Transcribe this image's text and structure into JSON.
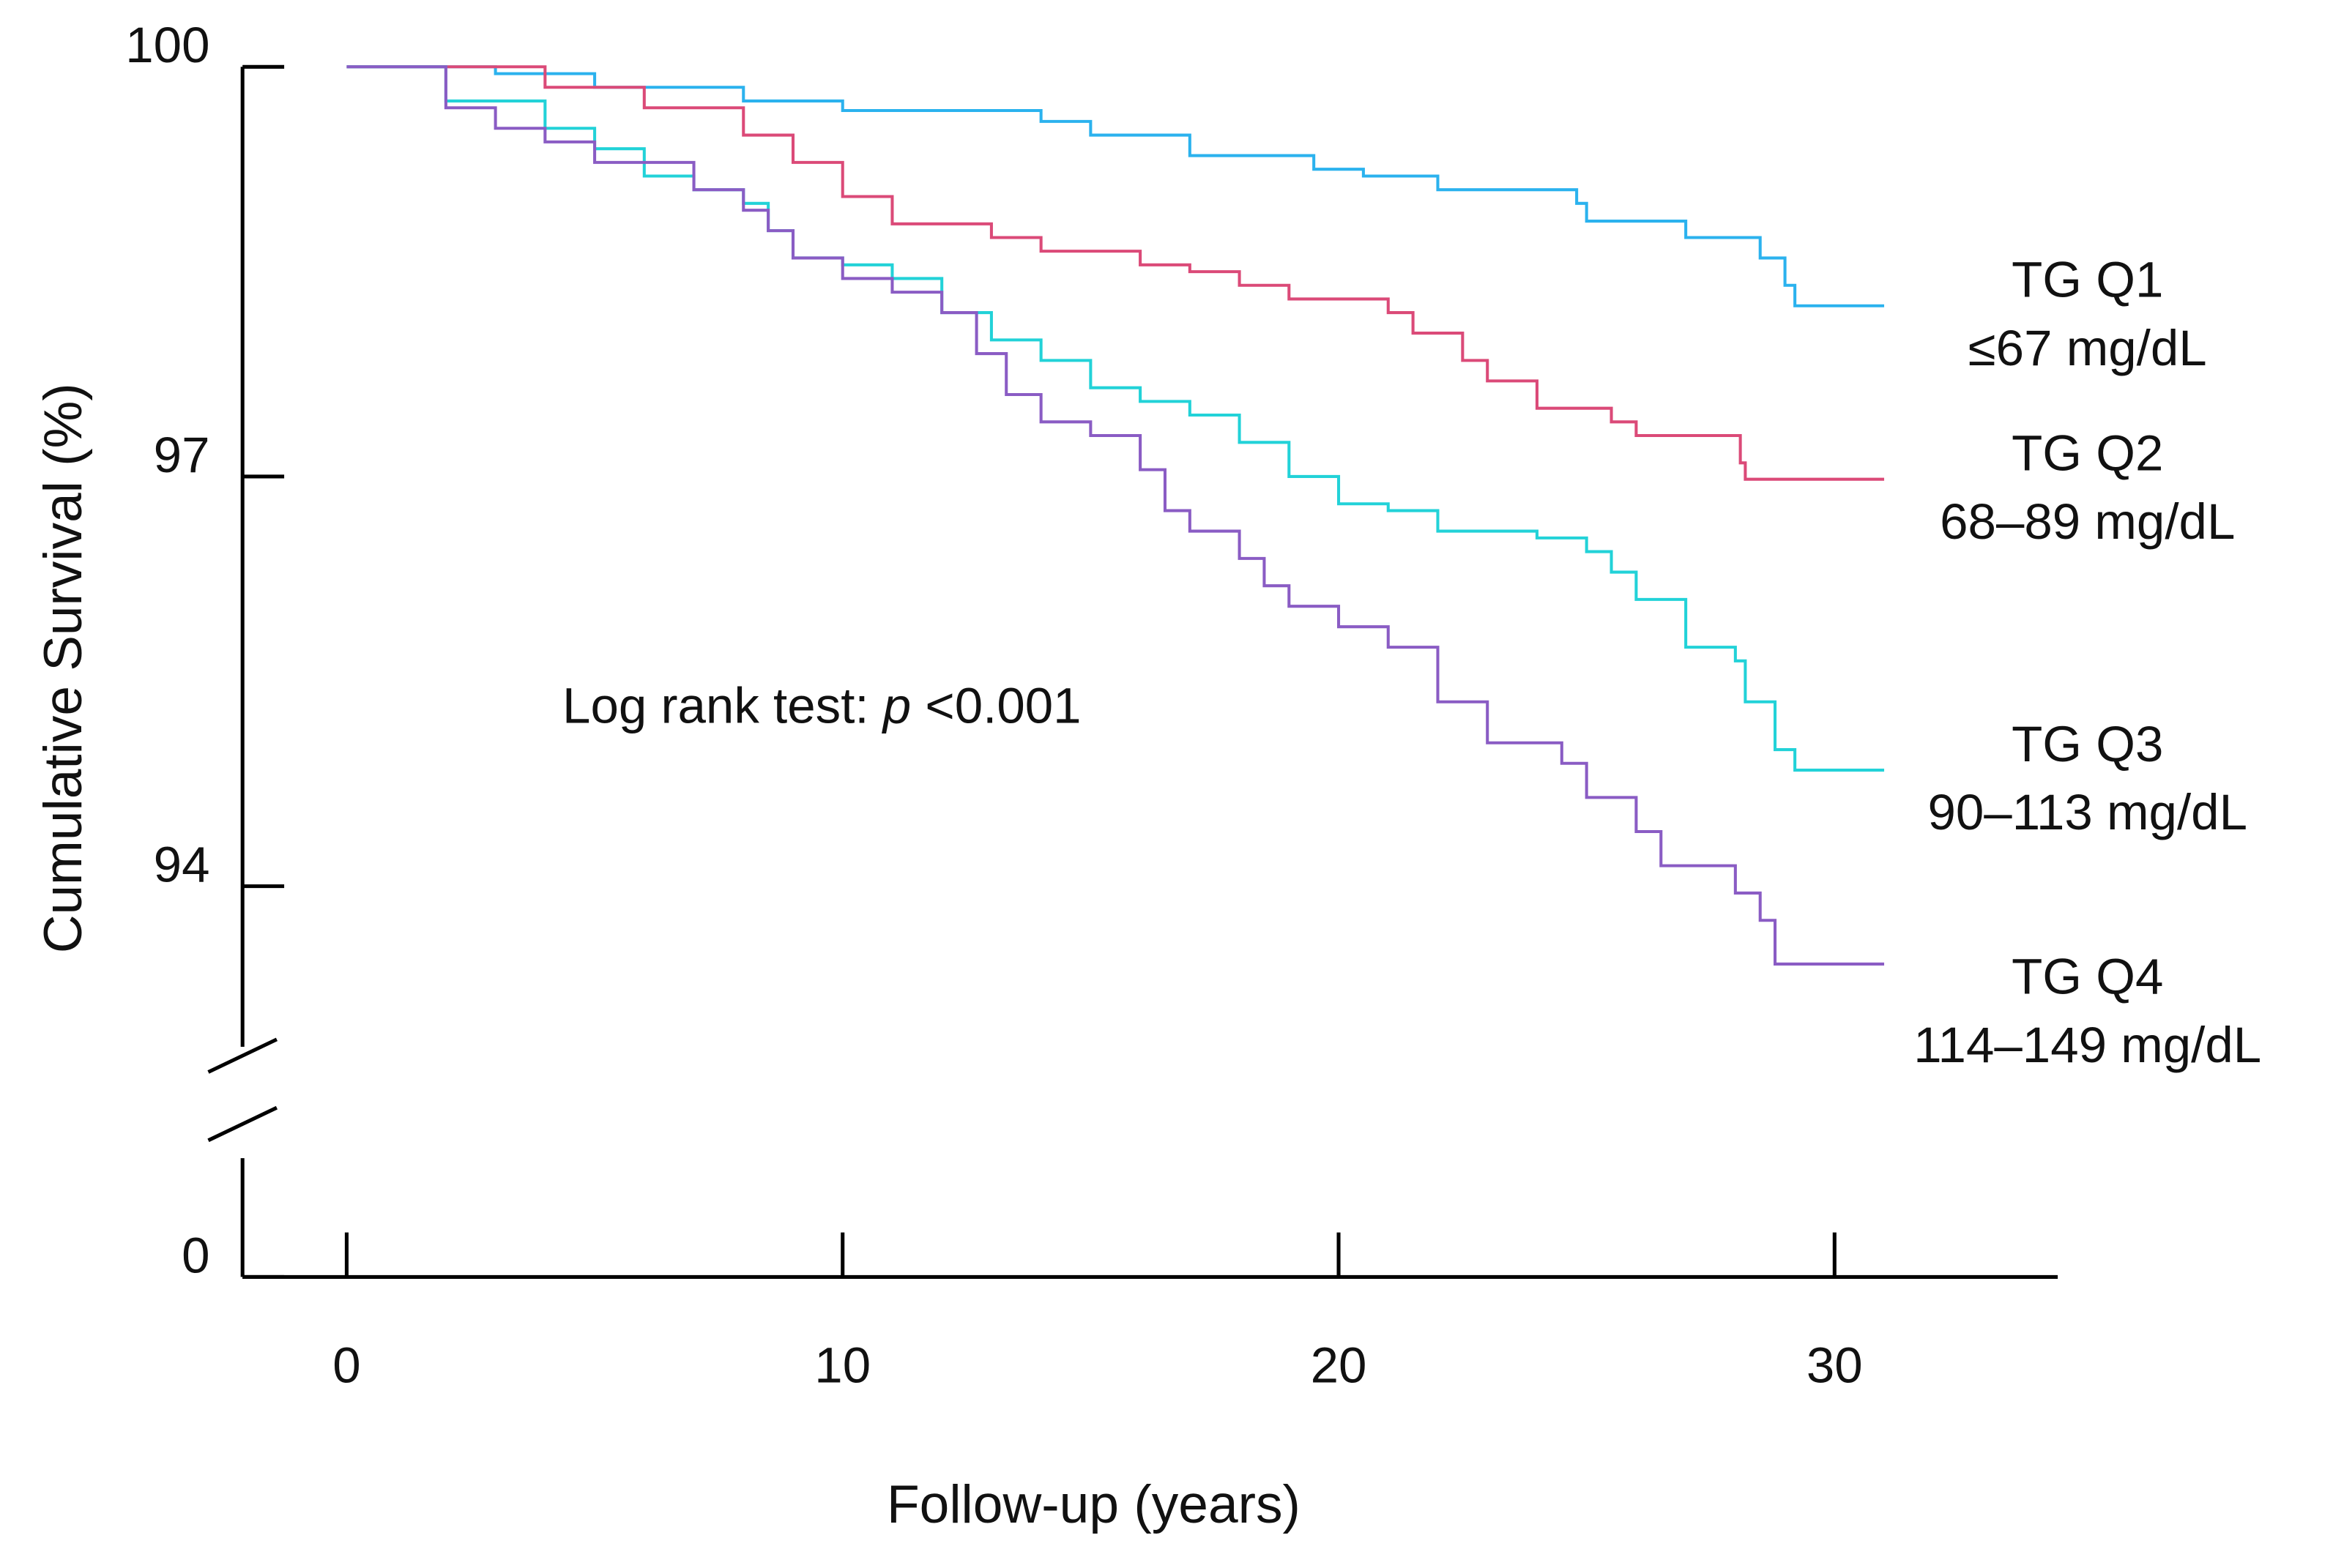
{
  "chart_data": {
    "type": "step",
    "ylabel": "Cumulative Survival (%)",
    "xlabel": "Follow-up  (years)",
    "annotation": [
      "Log rank test: ",
      "p",
      " <0.001"
    ],
    "xlim": [
      -2.1,
      34.5
    ],
    "xticks": [
      0,
      10,
      20,
      30
    ],
    "ylim": [
      0,
      100
    ],
    "y_break": [
      1,
      92.9
    ],
    "yticks": [
      0,
      94,
      97,
      100
    ],
    "series": [
      {
        "name": "TG Q1",
        "range": "≤67 mg/dL",
        "color": "#2bb2ee",
        "x": [
          0,
          3,
          5,
          8,
          10,
          14,
          15,
          17,
          19.5,
          20.5,
          22,
          24.8,
          25,
          27,
          28.5,
          29,
          29.2,
          31
        ],
        "values": [
          100,
          99.95,
          99.85,
          99.75,
          99.68,
          99.6,
          99.5,
          99.35,
          99.25,
          99.2,
          99.1,
          99.0,
          98.87,
          98.75,
          98.6,
          98.4,
          98.25,
          98.25
        ]
      },
      {
        "name": "TG Q2",
        "range": "68–89 mg/dL",
        "color": "#db4a78",
        "x": [
          0,
          4,
          6,
          8,
          9,
          10,
          11,
          13,
          14,
          16,
          17,
          18,
          19,
          21,
          21.5,
          22.5,
          23,
          24,
          25.5,
          26,
          28.1,
          28.2,
          31
        ],
        "values": [
          100,
          99.85,
          99.7,
          99.5,
          99.3,
          99.05,
          98.85,
          98.75,
          98.65,
          98.55,
          98.5,
          98.4,
          98.3,
          98.2,
          98.05,
          97.85,
          97.7,
          97.5,
          97.4,
          97.3,
          97.1,
          96.98,
          96.98
        ]
      },
      {
        "name": "TG Q3",
        "range": "90–113 mg/dL",
        "color": "#22d2d8",
        "x": [
          0,
          2,
          4,
          5,
          6,
          7,
          8,
          8.5,
          9,
          10,
          11,
          12,
          13,
          14,
          15,
          16,
          17,
          18,
          19,
          20,
          21,
          22,
          24,
          25,
          25.5,
          26,
          27,
          28,
          28.2,
          28.8,
          29.2,
          31
        ],
        "values": [
          100,
          99.75,
          99.55,
          99.4,
          99.2,
          99.1,
          99.0,
          98.8,
          98.6,
          98.55,
          98.45,
          98.2,
          98.0,
          97.85,
          97.65,
          97.55,
          97.45,
          97.25,
          97.0,
          96.8,
          96.75,
          96.6,
          96.55,
          96.45,
          96.3,
          96.1,
          95.75,
          95.65,
          95.35,
          95.0,
          94.85,
          94.85
        ]
      },
      {
        "name": "TG Q4",
        "range": "114–149 mg/dL",
        "color": "#8a5cc4",
        "x": [
          0,
          2,
          3,
          4,
          5,
          7,
          8,
          8.5,
          9,
          10,
          11,
          12,
          12.7,
          13.3,
          14,
          15,
          16,
          16.5,
          17,
          18,
          18.5,
          19,
          20,
          21,
          22,
          23,
          24.5,
          25,
          26,
          26.5,
          28,
          28.5,
          28.8,
          31
        ],
        "values": [
          100,
          99.7,
          99.55,
          99.45,
          99.3,
          99.1,
          98.95,
          98.8,
          98.6,
          98.45,
          98.35,
          98.2,
          97.9,
          97.6,
          97.4,
          97.3,
          97.05,
          96.75,
          96.6,
          96.4,
          96.2,
          96.05,
          95.9,
          95.75,
          95.35,
          95.05,
          94.9,
          94.65,
          94.4,
          94.15,
          93.95,
          93.75,
          93.43,
          93.43
        ]
      }
    ]
  }
}
